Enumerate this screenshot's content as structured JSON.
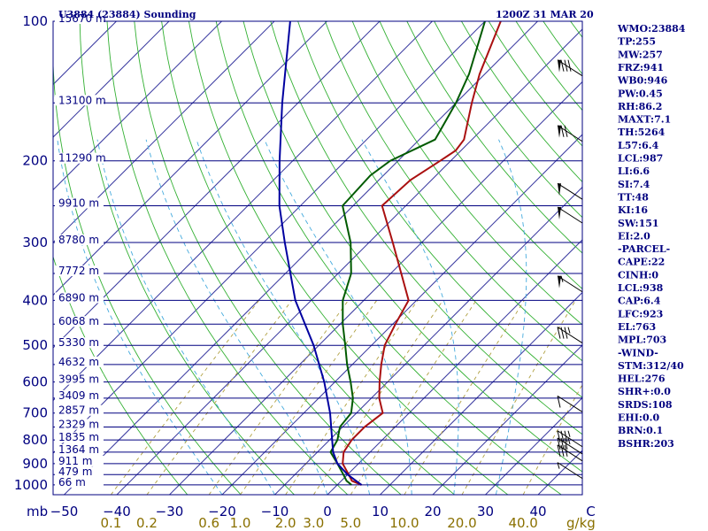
{
  "chart_data": {
    "type": "line",
    "title_left": "U3884 (23884) Sounding",
    "title_right": "1200Z 31 MAR 20",
    "y_axis_unit_label": "mb",
    "mixing_ratio_unit_label": "g/kg",
    "pressure_ticks": [
      100,
      200,
      300,
      400,
      500,
      600,
      700,
      800,
      900,
      1000
    ],
    "temperature_ticks": [
      -50,
      -40,
      -30,
      -20,
      -10,
      0,
      10,
      20,
      30,
      40,
      50
    ],
    "temperature_tick_labels": [
      "−50",
      "−40",
      "−30",
      "−20",
      "−10",
      "0",
      "10",
      "20",
      "30",
      "40",
      "C"
    ],
    "mixing_ratio_labels": [
      {
        "label": "0.1",
        "w": 0.1
      },
      {
        "label": "0.2",
        "w": 0.2
      },
      {
        "label": "0.6",
        "w": 0.6
      },
      {
        "label": "1.0",
        "w": 1.0
      },
      {
        "label": "2.0",
        "w": 2.0
      },
      {
        "label": "3.0",
        "w": 3.0
      },
      {
        "label": "5.0",
        "w": 5.0
      },
      {
        "label": "10.0",
        "w": 10.0
      },
      {
        "label": "20.0",
        "w": 20.0
      },
      {
        "label": "40.0",
        "w": 40.0
      }
    ],
    "height_levels": [
      {
        "p": 100,
        "label": "15670 m"
      },
      {
        "p": 150,
        "label": "13100 m"
      },
      {
        "p": 200,
        "label": "11290 m"
      },
      {
        "p": 250,
        "label": "9910 m"
      },
      {
        "p": 300,
        "label": "8780 m"
      },
      {
        "p": 350,
        "label": "7772 m"
      },
      {
        "p": 400,
        "label": "6890 m"
      },
      {
        "p": 450,
        "label": "6068 m"
      },
      {
        "p": 500,
        "label": "5330 m"
      },
      {
        "p": 550,
        "label": "4632 m"
      },
      {
        "p": 600,
        "label": "3995 m"
      },
      {
        "p": 650,
        "label": "3409 m"
      },
      {
        "p": 700,
        "label": "2857 m"
      },
      {
        "p": 750,
        "label": "2329 m"
      },
      {
        "p": 800,
        "label": "1835 m"
      },
      {
        "p": 850,
        "label": "1364 m"
      },
      {
        "p": 900,
        "label": "911 m"
      },
      {
        "p": 950,
        "label": "479 m"
      },
      {
        "p": 1000,
        "label": "66 m"
      }
    ],
    "series": [
      {
        "name": "temperature",
        "color": "#aa1010",
        "points": [
          [
            1000,
            4.6
          ],
          [
            980,
            2.0
          ],
          [
            950,
            0.2
          ],
          [
            900,
            -3.0
          ],
          [
            850,
            -5.0
          ],
          [
            800,
            -5.8
          ],
          [
            750,
            -5.8
          ],
          [
            700,
            -5.0
          ],
          [
            650,
            -8.5
          ],
          [
            600,
            -11.5
          ],
          [
            550,
            -14.5
          ],
          [
            500,
            -17.5
          ],
          [
            450,
            -19.5
          ],
          [
            400,
            -21.5
          ],
          [
            350,
            -28.0
          ],
          [
            300,
            -35.5
          ],
          [
            250,
            -44.5
          ],
          [
            220,
            -44.0
          ],
          [
            200,
            -42.0
          ],
          [
            190,
            -41.0
          ],
          [
            180,
            -41.5
          ],
          [
            150,
            -47.0
          ],
          [
            130,
            -51.0
          ],
          [
            100,
            -57.0
          ]
        ]
      },
      {
        "name": "dewpoint",
        "color": "#005a00",
        "points": [
          [
            1000,
            2.7
          ],
          [
            980,
            1.0
          ],
          [
            950,
            -0.8
          ],
          [
            900,
            -4.0
          ],
          [
            850,
            -7.5
          ],
          [
            800,
            -8.5
          ],
          [
            750,
            -10.5
          ],
          [
            700,
            -11.0
          ],
          [
            650,
            -13.5
          ],
          [
            600,
            -17.0
          ],
          [
            550,
            -21.0
          ],
          [
            500,
            -25.0
          ],
          [
            450,
            -29.5
          ],
          [
            400,
            -34.0
          ],
          [
            350,
            -37.5
          ],
          [
            300,
            -43.5
          ],
          [
            250,
            -52.0
          ],
          [
            215,
            -52.5
          ],
          [
            200,
            -51.5
          ],
          [
            180,
            -47.0
          ],
          [
            150,
            -50.0
          ],
          [
            130,
            -53.0
          ],
          [
            100,
            -60.0
          ]
        ]
      },
      {
        "name": "parcel",
        "color": "#0000a0",
        "points": [
          [
            1000,
            4.6
          ],
          [
            950,
            0.0
          ],
          [
            900,
            -4.0
          ],
          [
            850,
            -7.0
          ],
          [
            800,
            -9.5
          ],
          [
            700,
            -15.0
          ],
          [
            600,
            -22.0
          ],
          [
            500,
            -31.0
          ],
          [
            400,
            -43.0
          ],
          [
            300,
            -56.0
          ],
          [
            250,
            -64.0
          ],
          [
            200,
            -72.5
          ],
          [
            150,
            -83.0
          ],
          [
            100,
            -97.0
          ]
        ]
      }
    ],
    "wind_barbs": [
      {
        "p": 130,
        "speed": 80
      },
      {
        "p": 180,
        "speed": 70
      },
      {
        "p": 240,
        "speed": 50
      },
      {
        "p": 270,
        "speed": 50
      },
      {
        "p": 380,
        "speed": 55
      },
      {
        "p": 490,
        "speed": 35
      },
      {
        "p": 690,
        "speed": 10
      },
      {
        "p": 820,
        "speed": 35
      },
      {
        "p": 850,
        "speed": 35
      },
      {
        "p": 880,
        "speed": 30
      },
      {
        "p": 960,
        "speed": 5
      }
    ]
  },
  "indices": [
    "WMO:23884",
    "TP:255",
    "MW:257",
    "FRZ:941",
    "WB0:946",
    "PW:0.45",
    "RH:86.2",
    "MAXT:7.1",
    "TH:5264",
    "L57:6.4",
    "LCL:987",
    "LI:6.6",
    "SI:7.4",
    "TT:48",
    "KI:16",
    "SW:151",
    "EI:2.0",
    "-PARCEL-",
    "CAPE:22",
    "CINH:0",
    "LCL:938",
    "CAP:6.4",
    "LFC:923",
    "EL:763",
    "MPL:703",
    "-WIND-",
    "STM:312/40",
    "HEL:276",
    "SHR+:0.0",
    "SRDS:108",
    "EHI:0.0",
    "BRN:0.1",
    "BSHR:203"
  ]
}
